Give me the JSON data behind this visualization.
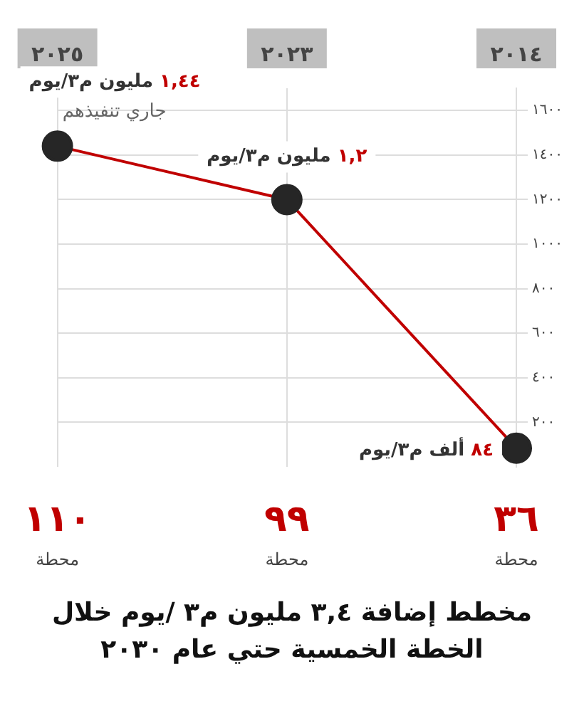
{
  "chart_data": {
    "type": "line",
    "title": "مخطط إضافة ٣,٤ مليون م٣ /يوم خلال الخطة الخمسية حتي عام ٢٠٣٠",
    "categories": [
      "٢٠٢٥",
      "٢٠٢٣",
      "٢٠١٤"
    ],
    "series": [
      {
        "color": "#c00000",
        "values": [
          1440,
          1200,
          84
        ]
      }
    ],
    "ylim": [
      0,
      1700
    ],
    "yticks": [
      {
        "value": 200,
        "label": "٢٠٠"
      },
      {
        "value": 400,
        "label": "٤٠٠"
      },
      {
        "value": 600,
        "label": "٦٠٠"
      },
      {
        "value": 800,
        "label": "٨٠٠"
      },
      {
        "value": 1000,
        "label": "١٠٠٠"
      },
      {
        "value": 1200,
        "label": "١٢٠٠"
      },
      {
        "value": 1400,
        "label": "١٤٠٠"
      },
      {
        "value": 1600,
        "label": "١٦٠٠"
      }
    ],
    "grid": true,
    "legend": false,
    "marker": "circle",
    "line_style": "solid",
    "annotations": [
      {
        "text": "١,٤٤ مليون م٣/يوم",
        "x": "٢٠٢٥",
        "y": 1440
      },
      {
        "text": "جاري تنفيذهم",
        "x": "٢٠٢٥",
        "y": 1440
      },
      {
        "text": "١,٢ مليون م٣/يوم",
        "x": "٢٠٢٣",
        "y": 1200
      },
      {
        "text": "٨٤ ألف م٣/يوم",
        "x": "٢٠١٤",
        "y": 84
      },
      "١١٠ محطة",
      "٩٩ محطة",
      "٣٦ محطة"
    ]
  }
}
